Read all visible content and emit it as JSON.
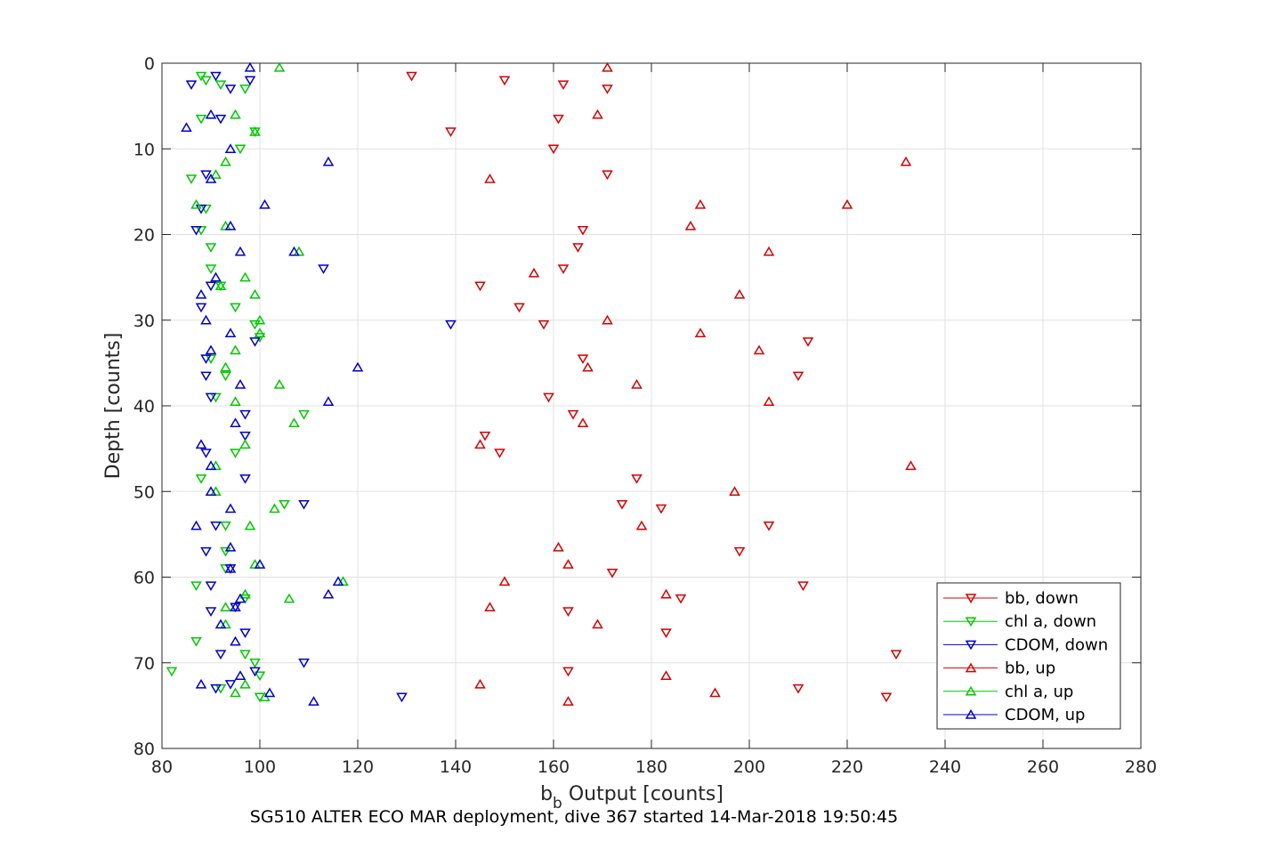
{
  "chart_data": {
    "type": "scatter",
    "xlabel": "b",
    "xlabel_sub": "b",
    "xlabel_rest": " Output [counts]",
    "ylabel": "Depth [counts]",
    "caption": "SG510 ALTER ECO MAR deployment, dive 367 started 14-Mar-2018 19:50:45",
    "xlim": [
      80,
      280
    ],
    "ylim": [
      0,
      80
    ],
    "y_reversed": true,
    "xticks": [
      80,
      100,
      120,
      140,
      160,
      180,
      200,
      220,
      240,
      260,
      280
    ],
    "yticks": [
      0,
      10,
      20,
      30,
      40,
      50,
      60,
      70,
      80
    ],
    "grid": true,
    "legend_position": "bottom-right",
    "series": [
      {
        "name": "bb, down",
        "color": "#d40000",
        "marker": "triangle-down",
        "points": [
          [
            131,
            1.5
          ],
          [
            150,
            2
          ],
          [
            162,
            2.5
          ],
          [
            171,
            3
          ],
          [
            161,
            6.5
          ],
          [
            139,
            8
          ],
          [
            160,
            10
          ],
          [
            171,
            13
          ],
          [
            166,
            19.5
          ],
          [
            165,
            21.5
          ],
          [
            162,
            24
          ],
          [
            145,
            26
          ],
          [
            153,
            28.5
          ],
          [
            158,
            30.5
          ],
          [
            212,
            32.5
          ],
          [
            166,
            34.5
          ],
          [
            210,
            36.5
          ],
          [
            159,
            39
          ],
          [
            164,
            41
          ],
          [
            146,
            43.5
          ],
          [
            149,
            45.5
          ],
          [
            177,
            48.5
          ],
          [
            174,
            51.5
          ],
          [
            182,
            52
          ],
          [
            204,
            54
          ],
          [
            198,
            57
          ],
          [
            172,
            59.5
          ],
          [
            211,
            61
          ],
          [
            186,
            62.5
          ],
          [
            163,
            64
          ],
          [
            183,
            66.5
          ],
          [
            230,
            69
          ],
          [
            163,
            71
          ],
          [
            210,
            73
          ],
          [
            228,
            74
          ]
        ]
      },
      {
        "name": "chl a, down",
        "color": "#00c800",
        "marker": "triangle-down",
        "points": [
          [
            88,
            1.5
          ],
          [
            89,
            2
          ],
          [
            92,
            2.5
          ],
          [
            97,
            3
          ],
          [
            88,
            6.5
          ],
          [
            99,
            8
          ],
          [
            96,
            10
          ],
          [
            86,
            13.5
          ],
          [
            89,
            17
          ],
          [
            88,
            19.5
          ],
          [
            90,
            21.5
          ],
          [
            90,
            24
          ],
          [
            92,
            26
          ],
          [
            95,
            28.5
          ],
          [
            99,
            30.5
          ],
          [
            100,
            32
          ],
          [
            90,
            34.5
          ],
          [
            93,
            36.5
          ],
          [
            91,
            39
          ],
          [
            109,
            41
          ],
          [
            95,
            45.5
          ],
          [
            88,
            48.5
          ],
          [
            105,
            51.5
          ],
          [
            93,
            54
          ],
          [
            93,
            57
          ],
          [
            93,
            59
          ],
          [
            87,
            61
          ],
          [
            97,
            62.5
          ],
          [
            87,
            67.5
          ],
          [
            97,
            69
          ],
          [
            99,
            70
          ],
          [
            100,
            71.5
          ],
          [
            82,
            71
          ],
          [
            92,
            73
          ],
          [
            100,
            74
          ]
        ]
      },
      {
        "name": "CDOM, down",
        "color": "#0000c8",
        "marker": "triangle-down",
        "points": [
          [
            91,
            1.5
          ],
          [
            98,
            2
          ],
          [
            86,
            2.5
          ],
          [
            94,
            3
          ],
          [
            92,
            6.5
          ],
          [
            89,
            13
          ],
          [
            88,
            17
          ],
          [
            87,
            19.5
          ],
          [
            113,
            24
          ],
          [
            90,
            26
          ],
          [
            88,
            28.5
          ],
          [
            139,
            30.5
          ],
          [
            99,
            32.5
          ],
          [
            89,
            34.5
          ],
          [
            89,
            36.5
          ],
          [
            90,
            39
          ],
          [
            97,
            41
          ],
          [
            97,
            43.5
          ],
          [
            89,
            45.5
          ],
          [
            97,
            48.5
          ],
          [
            109,
            51.5
          ],
          [
            91,
            54
          ],
          [
            89,
            57
          ],
          [
            94,
            59
          ],
          [
            90,
            61
          ],
          [
            95,
            63.5
          ],
          [
            90,
            64
          ],
          [
            97,
            66.5
          ],
          [
            92,
            69
          ],
          [
            109,
            70
          ],
          [
            99,
            71
          ],
          [
            94,
            72.5
          ],
          [
            91,
            73
          ],
          [
            129,
            74
          ]
        ]
      },
      {
        "name": "bb, up",
        "color": "#d40000",
        "marker": "triangle-up",
        "points": [
          [
            171,
            0.5
          ],
          [
            169,
            6
          ],
          [
            232,
            11.5
          ],
          [
            147,
            13.5
          ],
          [
            220,
            16.5
          ],
          [
            190,
            16.5
          ],
          [
            188,
            19
          ],
          [
            204,
            22
          ],
          [
            156,
            24.5
          ],
          [
            198,
            27
          ],
          [
            171,
            30
          ],
          [
            190,
            31.5
          ],
          [
            202,
            33.5
          ],
          [
            167,
            35.5
          ],
          [
            177,
            37.5
          ],
          [
            204,
            39.5
          ],
          [
            166,
            42
          ],
          [
            145,
            44.5
          ],
          [
            233,
            47
          ],
          [
            197,
            50
          ],
          [
            178,
            54
          ],
          [
            161,
            56.5
          ],
          [
            163,
            58.5
          ],
          [
            150,
            60.5
          ],
          [
            183,
            62
          ],
          [
            147,
            63.5
          ],
          [
            169,
            65.5
          ],
          [
            183,
            71.5
          ],
          [
            145,
            72.5
          ],
          [
            193,
            73.5
          ],
          [
            163,
            74.5
          ]
        ]
      },
      {
        "name": "chl a, up",
        "color": "#00c800",
        "marker": "triangle-up",
        "points": [
          [
            104,
            0.5
          ],
          [
            95,
            6
          ],
          [
            99,
            8
          ],
          [
            93,
            11.5
          ],
          [
            91,
            13
          ],
          [
            87,
            16.5
          ],
          [
            93,
            19
          ],
          [
            108,
            22
          ],
          [
            97,
            25
          ],
          [
            92,
            26
          ],
          [
            99,
            27
          ],
          [
            100,
            30
          ],
          [
            100,
            31.5
          ],
          [
            95,
            33.5
          ],
          [
            93,
            35.5
          ],
          [
            104,
            37.5
          ],
          [
            95,
            39.5
          ],
          [
            107,
            42
          ],
          [
            97,
            44.5
          ],
          [
            91,
            47
          ],
          [
            91,
            50
          ],
          [
            103,
            52
          ],
          [
            98,
            54
          ],
          [
            99,
            58.5
          ],
          [
            117,
            60.5
          ],
          [
            97,
            62
          ],
          [
            106,
            62.5
          ],
          [
            93,
            63.5
          ],
          [
            93,
            65.5
          ],
          [
            97,
            72.5
          ],
          [
            95,
            73.5
          ],
          [
            101,
            74
          ]
        ]
      },
      {
        "name": "CDOM, up",
        "color": "#0000c8",
        "marker": "triangle-up",
        "points": [
          [
            98,
            0.5
          ],
          [
            90,
            6
          ],
          [
            85,
            7.5
          ],
          [
            94,
            10
          ],
          [
            114,
            11.5
          ],
          [
            90,
            13.5
          ],
          [
            101,
            16.5
          ],
          [
            94,
            19
          ],
          [
            96,
            22
          ],
          [
            107,
            22
          ],
          [
            91,
            25
          ],
          [
            88,
            27
          ],
          [
            89,
            30
          ],
          [
            94,
            31.5
          ],
          [
            90,
            33.5
          ],
          [
            120,
            35.5
          ],
          [
            96,
            37.5
          ],
          [
            114,
            39.5
          ],
          [
            95,
            42
          ],
          [
            88,
            44.5
          ],
          [
            90,
            47
          ],
          [
            90,
            50
          ],
          [
            94,
            52
          ],
          [
            87,
            54
          ],
          [
            94,
            56.5
          ],
          [
            100,
            58.5
          ],
          [
            94,
            59
          ],
          [
            116,
            60.5
          ],
          [
            114,
            62
          ],
          [
            96,
            62.5
          ],
          [
            95,
            63.5
          ],
          [
            92,
            65.5
          ],
          [
            95,
            67.5
          ],
          [
            96,
            71.5
          ],
          [
            88,
            72.5
          ],
          [
            102,
            73.5
          ],
          [
            111,
            74.5
          ]
        ]
      }
    ]
  }
}
